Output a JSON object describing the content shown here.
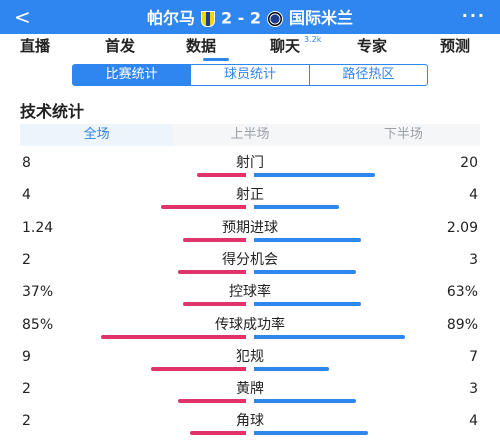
{
  "header": {
    "back": "<",
    "home_team": "帕尔马",
    "score": "2 - 2",
    "away_team": "国际米兰",
    "more": "···"
  },
  "tabs": [
    {
      "label": "直播"
    },
    {
      "label": "首发"
    },
    {
      "label": "数据"
    },
    {
      "label": "聊天",
      "badge": "3.2k"
    },
    {
      "label": "专家"
    },
    {
      "label": "预测"
    }
  ],
  "segments": [
    "比赛统计",
    "球员统计",
    "路径热区"
  ],
  "section_title": "技术统计",
  "periods": [
    "全场",
    "上半场",
    "下半场"
  ],
  "colors": {
    "home": "#e0336a",
    "away": "#2f86ef",
    "accent": "#2f86ef"
  },
  "stats": [
    {
      "label": "射门",
      "home": "8",
      "away": "20",
      "home_share": 0.29,
      "away_share": 0.71
    },
    {
      "label": "射正",
      "home": "4",
      "away": "4",
      "home_share": 0.5,
      "away_share": 0.5
    },
    {
      "label": "预期进球",
      "home": "1.24",
      "away": "2.09",
      "home_share": 0.37,
      "away_share": 0.63
    },
    {
      "label": "得分机会",
      "home": "2",
      "away": "3",
      "home_share": 0.4,
      "away_share": 0.6
    },
    {
      "label": "控球率",
      "home": "37%",
      "away": "63%",
      "home_share": 0.37,
      "away_share": 0.63
    },
    {
      "label": "传球成功率",
      "home": "85%",
      "away": "89%",
      "home_share": 0.85,
      "away_share": 0.89
    },
    {
      "label": "犯规",
      "home": "9",
      "away": "7",
      "home_share": 0.56,
      "away_share": 0.44
    },
    {
      "label": "黄牌",
      "home": "2",
      "away": "3",
      "home_share": 0.4,
      "away_share": 0.6
    },
    {
      "label": "角球",
      "home": "2",
      "away": "4",
      "home_share": 0.33,
      "away_share": 0.67
    }
  ]
}
